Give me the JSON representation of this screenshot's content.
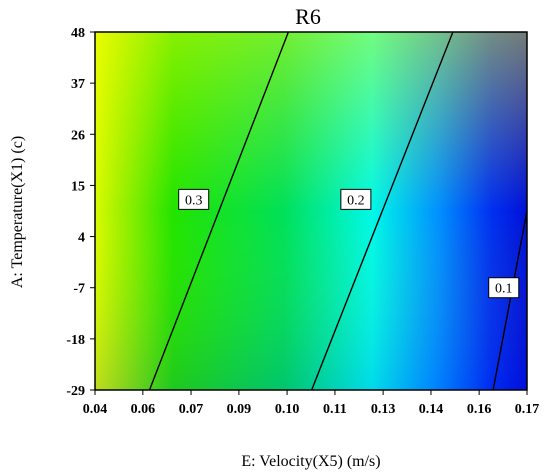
{
  "chart_data": {
    "type": "heatmap",
    "title": "R6",
    "xlabel": "E: Velocity(X5) (m/s)",
    "ylabel": "A: Temperature(X1) (c)",
    "xlim": [
      0.04,
      0.17
    ],
    "ylim": [
      -29,
      48
    ],
    "x_ticks": [
      "0.04",
      "0.06",
      "0.07",
      "0.09",
      "0.10",
      "0.11",
      "0.13",
      "0.14",
      "0.16",
      "0.17"
    ],
    "x_tick_values": [
      0.04,
      0.0544,
      0.0689,
      0.0833,
      0.0978,
      0.1122,
      0.1267,
      0.1411,
      0.1556,
      0.17
    ],
    "y_ticks": [
      "48",
      "37",
      "26",
      "15",
      "4",
      "-7",
      "-18",
      "-29"
    ],
    "y_tick_values": [
      48,
      37,
      26,
      15,
      4,
      -7,
      -18,
      -29
    ],
    "colormap": [
      "#ffff00",
      "#00e000",
      "#00ffff",
      "#0000ff"
    ],
    "contours": [
      {
        "label": "0.3",
        "level": 0.3,
        "points": [
          [
            0.0564,
            -29
          ],
          [
            0.0982,
            48
          ]
        ],
        "label_at": [
          0.0697,
          12
        ]
      },
      {
        "label": "0.2",
        "level": 0.2,
        "points": [
          [
            0.1052,
            -29
          ],
          [
            0.1477,
            48
          ]
        ],
        "label_at": [
          0.1185,
          12
        ]
      },
      {
        "label": "0.1",
        "level": 0.1,
        "points": [
          [
            0.1598,
            -29
          ],
          [
            0.17,
            9.5
          ]
        ],
        "label_at": [
          0.163,
          -7
        ]
      }
    ]
  }
}
